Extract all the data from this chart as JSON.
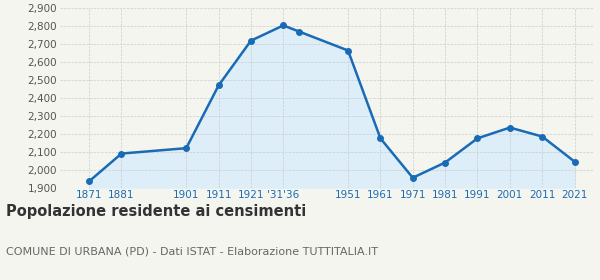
{
  "years": [
    1871,
    1881,
    1901,
    1911,
    1921,
    1931,
    1936,
    1951,
    1961,
    1971,
    1981,
    1991,
    2001,
    2011,
    2021
  ],
  "population": [
    1935,
    2090,
    2120,
    2470,
    2720,
    2805,
    2770,
    2665,
    2175,
    1955,
    2040,
    2175,
    2235,
    2185,
    2045
  ],
  "line_color": "#1a6bb5",
  "fill_color": "#ddeef9",
  "marker": "o",
  "marker_size": 4,
  "linewidth": 1.8,
  "ylim": [
    1900,
    2900
  ],
  "yticks": [
    1900,
    2000,
    2100,
    2200,
    2300,
    2400,
    2500,
    2600,
    2700,
    2800,
    2900
  ],
  "xlim_left": 1862,
  "xlim_right": 2027,
  "xtick_positions": [
    1871,
    1881,
    1901,
    1911,
    1921,
    1931,
    1951,
    1961,
    1971,
    1981,
    1991,
    2001,
    2011,
    2021
  ],
  "xtick_labels": [
    "1871",
    "1881",
    "1901",
    "1911",
    "1921",
    "'31'36",
    "1951",
    "1961",
    "1971",
    "1981",
    "1991",
    "2001",
    "2011",
    "2021"
  ],
  "title": "Popolazione residente ai censimenti",
  "subtitle": "COMUNE DI URBANA (PD) - Dati ISTAT - Elaborazione TUTTITALIA.IT",
  "title_fontsize": 10.5,
  "subtitle_fontsize": 8,
  "tick_fontsize": 7.5,
  "background_color": "#f5f5f0",
  "grid_color": "#cccccc",
  "ytick_color": "#555555",
  "xtick_color": "#1a6bb5"
}
